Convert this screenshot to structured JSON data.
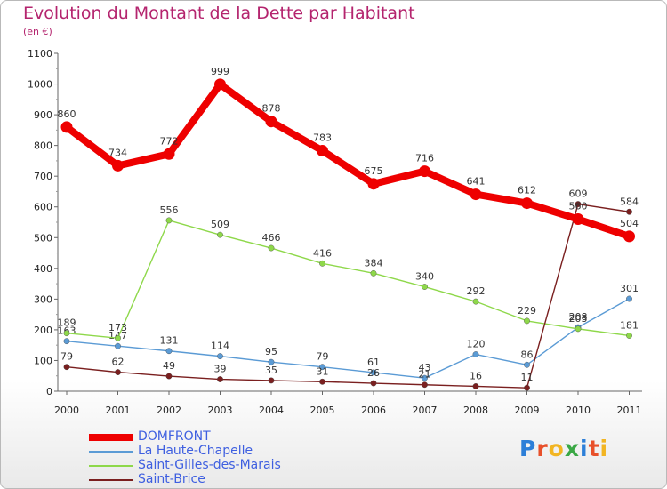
{
  "title": "Evolution du Montant de la Dette par Habitant",
  "subtitle": "(en €)",
  "brand": {
    "letters": [
      {
        "ch": "P",
        "color": "#2d7fd8"
      },
      {
        "ch": "r",
        "color": "#e8502a"
      },
      {
        "ch": "o",
        "color": "#f2b522"
      },
      {
        "ch": "x",
        "color": "#3aa845"
      },
      {
        "ch": "i",
        "color": "#2d7fd8"
      },
      {
        "ch": "t",
        "color": "#e8502a"
      },
      {
        "ch": "i",
        "color": "#f2b522"
      }
    ]
  },
  "chart_data": {
    "type": "line",
    "title": "Evolution du Montant de la Dette par Habitant",
    "subtitle": "(en €)",
    "x": [
      "2000",
      "2001",
      "2002",
      "2003",
      "2004",
      "2005",
      "2006",
      "2007",
      "2008",
      "2009",
      "2010",
      "2011"
    ],
    "ylim": [
      0,
      1100
    ],
    "yticks": [
      0,
      100,
      200,
      300,
      400,
      500,
      600,
      700,
      800,
      900,
      1000,
      1100
    ],
    "grid": false,
    "legend_position": "bottom-left",
    "series": [
      {
        "name": "DOMFRONT",
        "color": "#ee0000",
        "values": [
          860,
          734,
          772,
          999,
          878,
          783,
          675,
          716,
          641,
          612,
          560,
          504
        ],
        "labels": [
          "860",
          "734",
          "772",
          "999",
          "878",
          "783",
          "675",
          "716",
          "641",
          "612",
          "560",
          "504"
        ]
      },
      {
        "name": "La Haute-Chapelle",
        "color": "#5b9bd5",
        "values": [
          163,
          147,
          131,
          114,
          95,
          79,
          61,
          43,
          120,
          86,
          208,
          301
        ],
        "labels": [
          "163",
          "147",
          "131",
          "114",
          "95",
          "79",
          "61",
          "43",
          "120",
          "86",
          "208",
          "301"
        ]
      },
      {
        "name": "Saint-Gilles-des-Marais",
        "color": "#8ed84a",
        "values": [
          189,
          173,
          556,
          509,
          466,
          416,
          384,
          340,
          292,
          229,
          203,
          181
        ],
        "labels": [
          "189",
          "173",
          "556",
          "509",
          "466",
          "416",
          "384",
          "340",
          "292",
          "229",
          "203",
          "181"
        ]
      },
      {
        "name": "Saint-Brice",
        "color": "#7a1f1f",
        "values": [
          79,
          62,
          49,
          39,
          35,
          31,
          26,
          21,
          16,
          11,
          609,
          584
        ],
        "labels": [
          "79",
          "62",
          "49",
          "39",
          "35",
          "31",
          "26",
          "21",
          "16",
          "11",
          "609",
          "584"
        ]
      }
    ]
  }
}
